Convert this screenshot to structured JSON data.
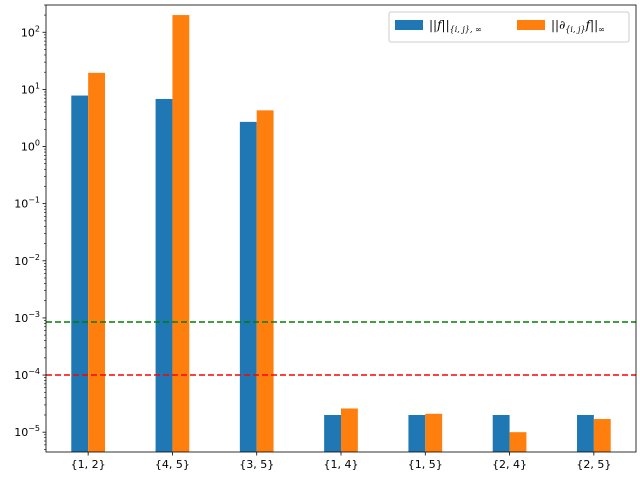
{
  "chart_data": {
    "type": "bar",
    "yscale": "log",
    "ylim": [
      4.5e-06,
      300
    ],
    "yticks": [
      {
        "value": 100,
        "base": "10",
        "exp": "2"
      },
      {
        "value": 10,
        "base": "10",
        "exp": "1"
      },
      {
        "value": 1,
        "base": "10",
        "exp": "0"
      },
      {
        "value": 0.1,
        "base": "10",
        "exp": "−1"
      },
      {
        "value": 0.01,
        "base": "10",
        "exp": "−2"
      },
      {
        "value": 0.001,
        "base": "10",
        "exp": "−3"
      },
      {
        "value": 0.0001,
        "base": "10",
        "exp": "−4"
      },
      {
        "value": 1e-05,
        "base": "10",
        "exp": "−5"
      }
    ],
    "categories": [
      "{1, 2}",
      "{4, 5}",
      "{3, 5}",
      "{1, 4}",
      "{1, 5}",
      "{2, 4}",
      "{2, 5}"
    ],
    "series": [
      {
        "name": "||f||{i,j},∞",
        "color": "#1f77b4",
        "values": [
          7.8,
          6.8,
          2.7,
          2e-05,
          2e-05,
          2e-05,
          2e-05
        ]
      },
      {
        "name": "||∂{i,j}f||∞",
        "color": "#ff7f0e",
        "values": [
          19.5,
          200,
          4.3,
          2.6e-05,
          2.1e-05,
          1e-05,
          1.7e-05
        ]
      }
    ],
    "hlines": [
      {
        "value": 0.00085,
        "color": "#008000",
        "style": "dashed"
      },
      {
        "value": 0.0001,
        "color": "#ff0000",
        "style": "dashed"
      }
    ],
    "grid": false,
    "legend": {
      "placement": "top-right",
      "ncol": 2
    },
    "title": "",
    "xlabel": "",
    "ylabel": ""
  }
}
